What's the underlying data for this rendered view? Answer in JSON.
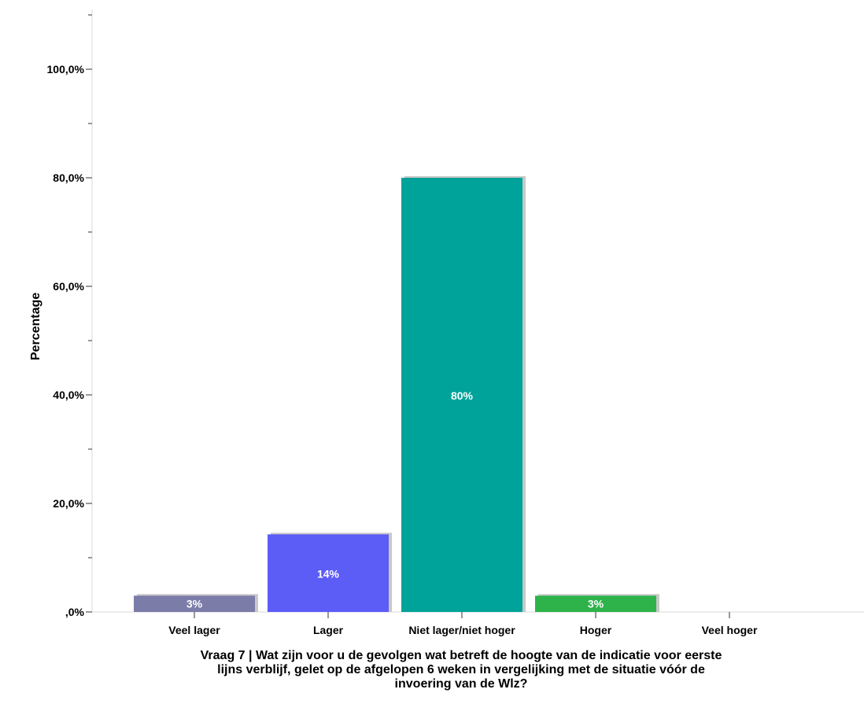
{
  "chart_data": {
    "type": "bar",
    "categories": [
      "Veel lager",
      "Lager",
      "Niet lager/niet hoger",
      "Hoger",
      "Veel hoger"
    ],
    "values": [
      3,
      14.3,
      80,
      3,
      0
    ],
    "data_labels": [
      "3%",
      "14%",
      "80%",
      "3%",
      ""
    ],
    "colors": [
      "#7b7ca8",
      "#5c5cf7",
      "#00a39a",
      "#2db34a",
      "#999999"
    ],
    "ylabel": "Percentage",
    "xlabel_lines": [
      "Vraag 7 | Wat zijn voor u de gevolgen wat betreft de hoogte van de indicatie voor eerste",
      "lijns verblijf, gelet op de afgelopen 6 weken in vergelijking met de situatie vóór de",
      "invoering van de Wlz?"
    ],
    "ylim": [
      0,
      110
    ],
    "yticks": [
      0,
      20,
      40,
      60,
      80,
      100
    ],
    "ytick_labels": [
      ",0%",
      "20,0%",
      "40,0%",
      "60,0%",
      "80,0%",
      "100,0%"
    ],
    "grid": false,
    "legend": "none"
  }
}
